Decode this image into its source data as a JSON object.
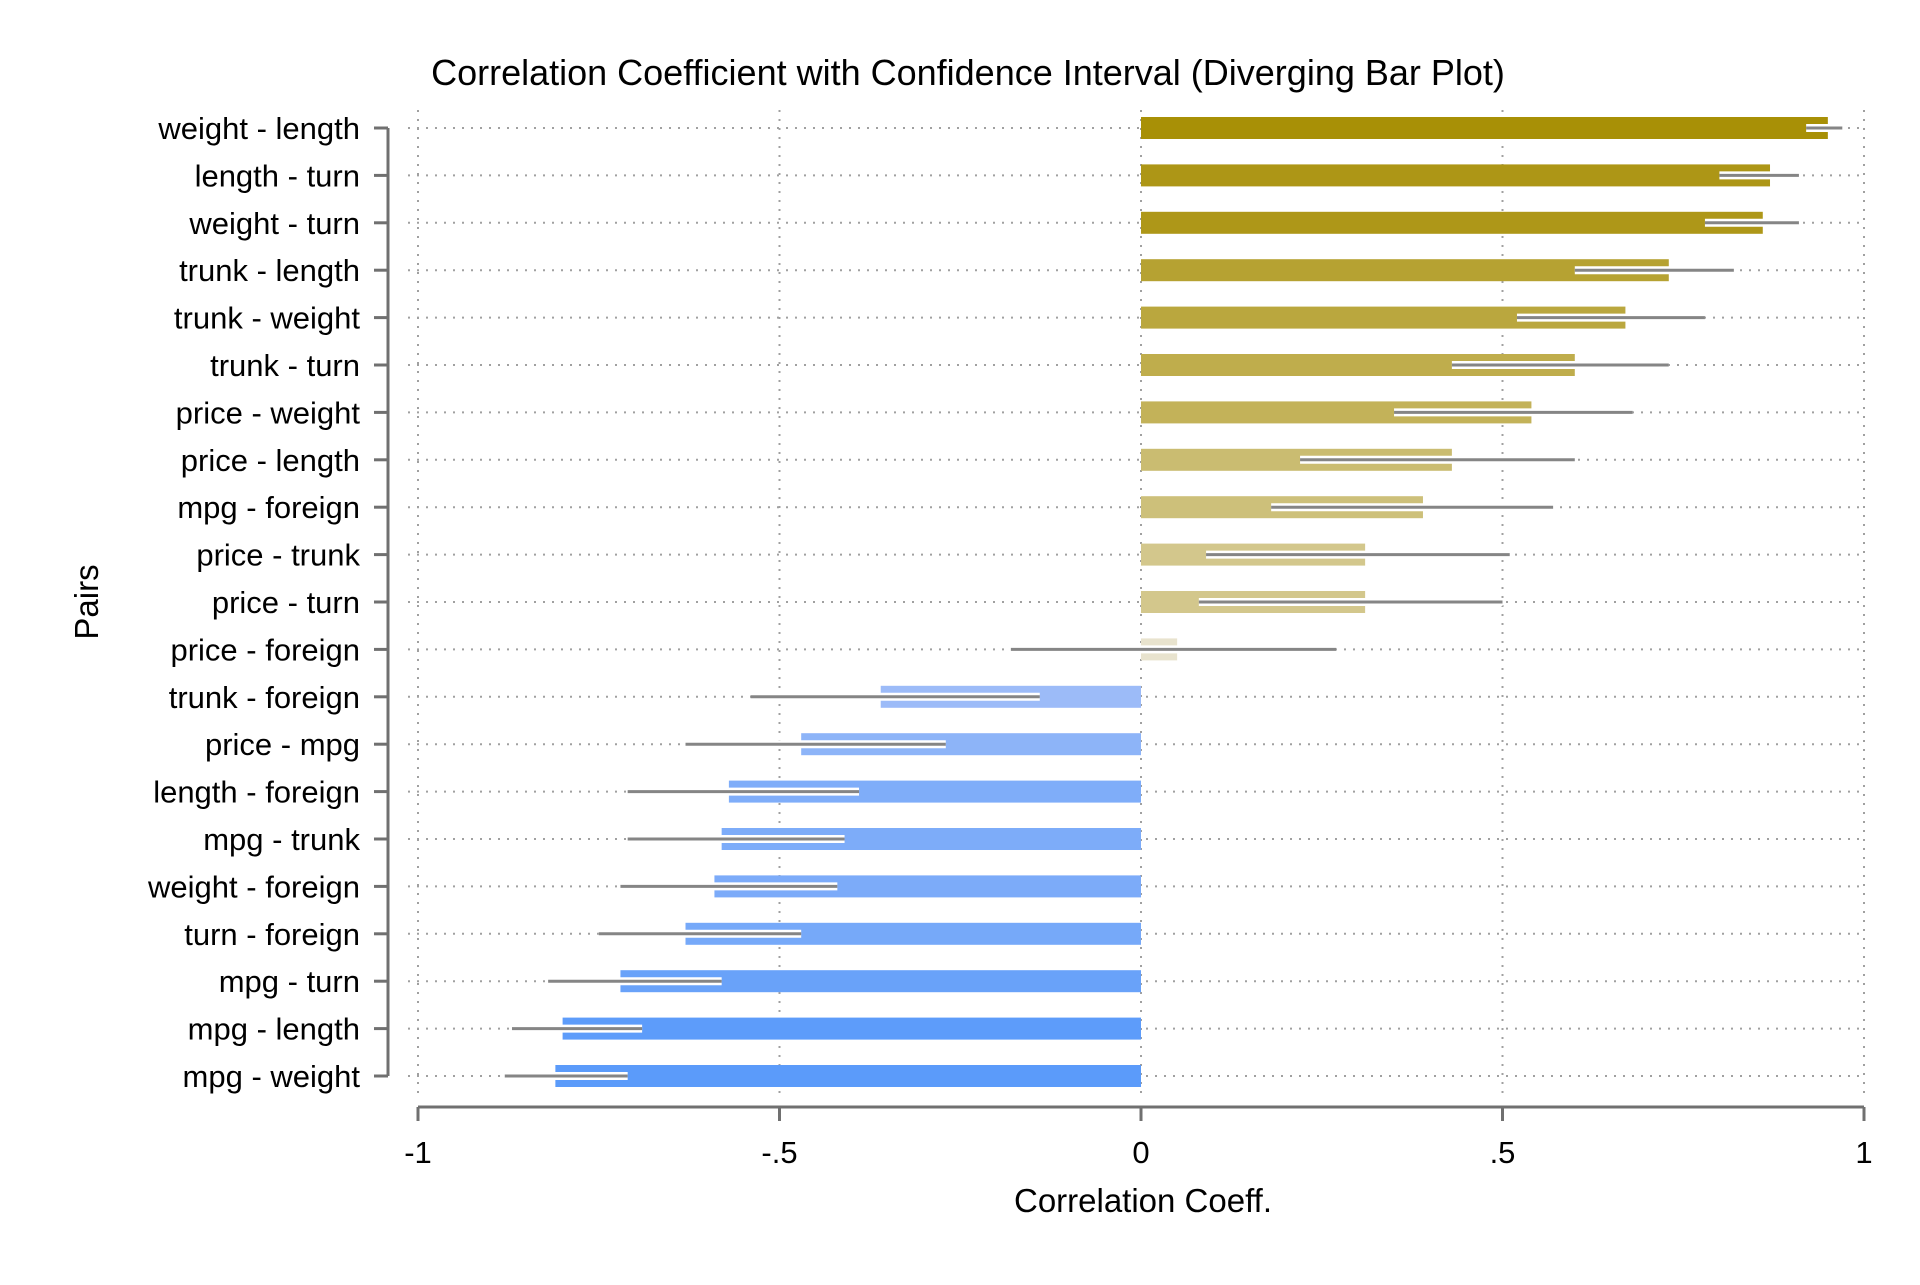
{
  "chart_data": {
    "type": "bar",
    "orientation": "horizontal",
    "title": "Correlation Coefficient with Confidence Interval (Diverging Bar Plot)",
    "xlabel": "Correlation Coeff.",
    "ylabel": "Pairs",
    "xlim": [
      -1,
      1
    ],
    "xticks": [
      {
        "value": -1,
        "label": "-1"
      },
      {
        "value": -0.5,
        "label": "-.5"
      },
      {
        "value": 0,
        "label": "0"
      },
      {
        "value": 0.5,
        "label": ".5"
      },
      {
        "value": 1,
        "label": "1"
      }
    ],
    "grid": true,
    "legend": "none",
    "categories": [
      "weight - length",
      "length - turn",
      "weight - turn",
      "trunk - length",
      "trunk - weight",
      "trunk - turn",
      "price - weight",
      "price - length",
      "mpg - foreign",
      "price - trunk",
      "price - turn",
      "price - foreign",
      "trunk - foreign",
      "price - mpg",
      "length - foreign",
      "mpg - trunk",
      "weight - foreign",
      "turn - foreign",
      "mpg - turn",
      "mpg - length",
      "mpg - weight"
    ],
    "values": [
      0.95,
      0.87,
      0.86,
      0.73,
      0.67,
      0.6,
      0.54,
      0.43,
      0.39,
      0.31,
      0.31,
      0.05,
      -0.36,
      -0.47,
      -0.57,
      -0.58,
      -0.59,
      -0.63,
      -0.72,
      -0.8,
      -0.81
    ],
    "ci_lower": [
      0.92,
      0.8,
      0.78,
      0.6,
      0.52,
      0.43,
      0.35,
      0.22,
      0.18,
      0.09,
      0.08,
      -0.18,
      -0.54,
      -0.63,
      -0.71,
      -0.71,
      -0.72,
      -0.75,
      -0.82,
      -0.87,
      -0.88
    ],
    "ci_upper": [
      0.97,
      0.91,
      0.91,
      0.82,
      0.78,
      0.73,
      0.68,
      0.6,
      0.57,
      0.51,
      0.5,
      0.27,
      -0.14,
      -0.27,
      -0.39,
      -0.41,
      -0.42,
      -0.47,
      -0.58,
      -0.69,
      -0.71
    ],
    "colors": {
      "positive_strong": "#a89006",
      "positive_weak": "#eeeae0",
      "negative_weak": "#c3cff6",
      "negative_strong": "#5b9bfa",
      "ci_line": "#858585",
      "axis": "#707070",
      "grid": "#a0a0a0"
    }
  }
}
